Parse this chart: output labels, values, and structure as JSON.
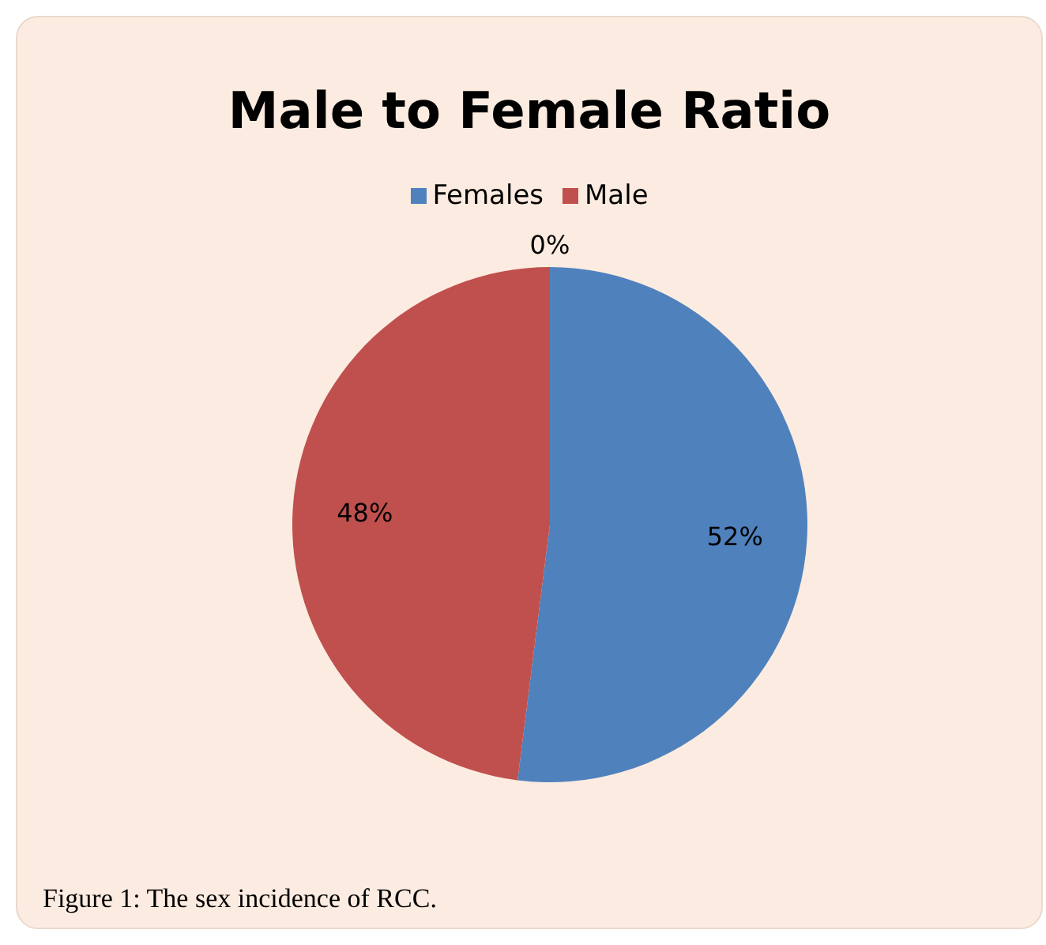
{
  "chart_data": {
    "type": "pie",
    "title": "Male to Female Ratio",
    "categories": [
      "Females",
      "Male",
      null
    ],
    "values": [
      52,
      48,
      0
    ],
    "colors": [
      "#4f81bd",
      "#c0504d",
      "#9bbb59"
    ],
    "value_labels": [
      "52%",
      "48%",
      "0%"
    ],
    "legend": "top",
    "annotations": [
      "Figure 1: The sex incidence of RCC."
    ]
  }
}
